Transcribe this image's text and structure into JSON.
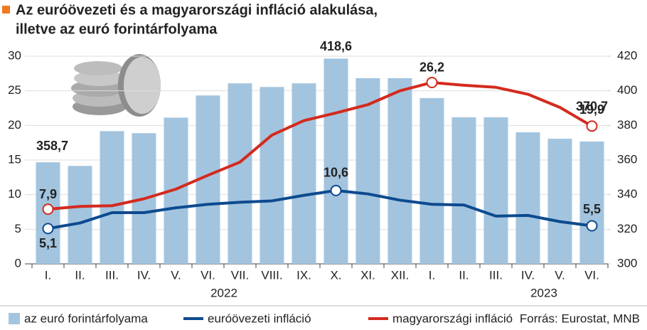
{
  "chart_data": {
    "type": "bar-line",
    "title": "Az euróövezeti és a magyarországi infláció alakulása,",
    "subtitle": "illetve az euró forintárfolyama",
    "categories": [
      "I.",
      "II.",
      "III.",
      "IV.",
      "V.",
      "VI.",
      "VII.",
      "VIII.",
      "IX.",
      "X.",
      "XI.",
      "XII.",
      "I.",
      "II.",
      "III.",
      "IV.",
      "V.",
      "VI."
    ],
    "year_labels": [
      "2022",
      "2023"
    ],
    "ylim": [
      0,
      30
    ],
    "yticks": [
      0,
      5,
      10,
      15,
      20,
      25,
      30
    ],
    "y2lim": [
      300,
      420
    ],
    "y2ticks": [
      300,
      320,
      340,
      360,
      380,
      400,
      420
    ],
    "grid": true,
    "series": [
      {
        "name": "az euró forintárfolyama",
        "type": "bar",
        "axis": "y2",
        "color": "#a3c4de",
        "values": [
          358.7,
          356.6,
          376.7,
          375.5,
          384.5,
          397.3,
          404.3,
          402.2,
          404.3,
          418.6,
          407.3,
          407.3,
          395.8,
          384.7,
          384.7,
          376.0,
          372.3,
          370.7
        ],
        "value_labels": [
          "358,7",
          null,
          null,
          null,
          null,
          null,
          null,
          null,
          null,
          "418,6",
          null,
          null,
          null,
          null,
          null,
          null,
          null,
          "370,7"
        ]
      },
      {
        "name": "euróövezeti infláció",
        "type": "line",
        "color": "#0d4a8f",
        "values": [
          5.1,
          5.9,
          7.4,
          7.4,
          8.1,
          8.6,
          8.9,
          9.1,
          9.9,
          10.6,
          10.1,
          9.2,
          8.6,
          8.5,
          6.9,
          7.0,
          6.1,
          5.5
        ],
        "value_labels": [
          "5,1",
          null,
          null,
          null,
          null,
          null,
          null,
          null,
          null,
          "10,6",
          null,
          null,
          null,
          null,
          null,
          null,
          null,
          "5,5"
        ]
      },
      {
        "name": "magyarországi infláció",
        "type": "line",
        "color": "#d42a1e",
        "values": [
          7.9,
          8.3,
          8.4,
          9.4,
          10.8,
          12.8,
          14.7,
          18.6,
          20.7,
          21.8,
          23.0,
          25.0,
          26.2,
          25.8,
          25.5,
          24.5,
          22.6,
          19.9
        ],
        "value_labels": [
          "7,9",
          null,
          null,
          null,
          null,
          null,
          null,
          null,
          null,
          null,
          null,
          null,
          "26,2",
          null,
          null,
          null,
          null,
          "19,9"
        ]
      }
    ],
    "source": "Forrás: Eurostat, MNB"
  }
}
